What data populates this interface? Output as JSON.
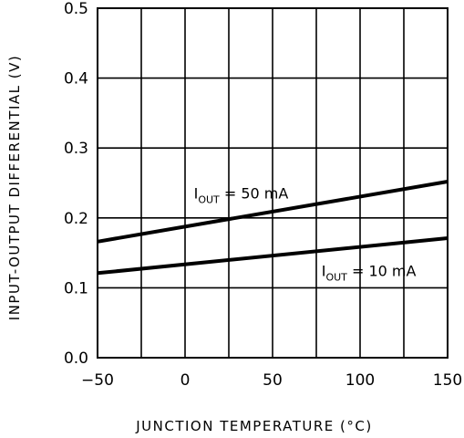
{
  "chart_data": {
    "type": "line",
    "xlabel": "JUNCTION TEMPERATURE (°C)",
    "ylabel": "INPUT-OUTPUT DIFFERENTIAL (V)",
    "xlim": [
      -50,
      150
    ],
    "ylim": [
      0.0,
      0.5
    ],
    "x_ticks": [
      -50,
      0,
      50,
      100,
      150
    ],
    "x_tick_labels": [
      "−50",
      "0",
      "50",
      "100",
      "150"
    ],
    "x_gridlines": [
      -25,
      0,
      25,
      50,
      75,
      100,
      125
    ],
    "y_ticks": [
      0.0,
      0.1,
      0.2,
      0.3,
      0.4,
      0.5
    ],
    "y_tick_labels": [
      "0.0",
      "0.1",
      "0.2",
      "0.3",
      "0.4",
      "0.5"
    ],
    "grid": true,
    "series": [
      {
        "name": "I OUT = 50 mA",
        "label_main": "I",
        "label_sub": "OUT",
        "label_rest": " = 50 mA",
        "x": [
          -50,
          150
        ],
        "y": [
          0.166,
          0.252
        ],
        "label_at": [
          5,
          0.228
        ],
        "label_anchor": "start"
      },
      {
        "name": "I OUT = 10 mA",
        "label_main": "I",
        "label_sub": "OUT",
        "label_rest": " = 10 mA",
        "x": [
          -50,
          150
        ],
        "y": [
          0.121,
          0.171
        ],
        "label_at": [
          132,
          0.117
        ],
        "label_anchor": "end"
      }
    ],
    "line_color": "#000000",
    "background": "#ffffff"
  }
}
